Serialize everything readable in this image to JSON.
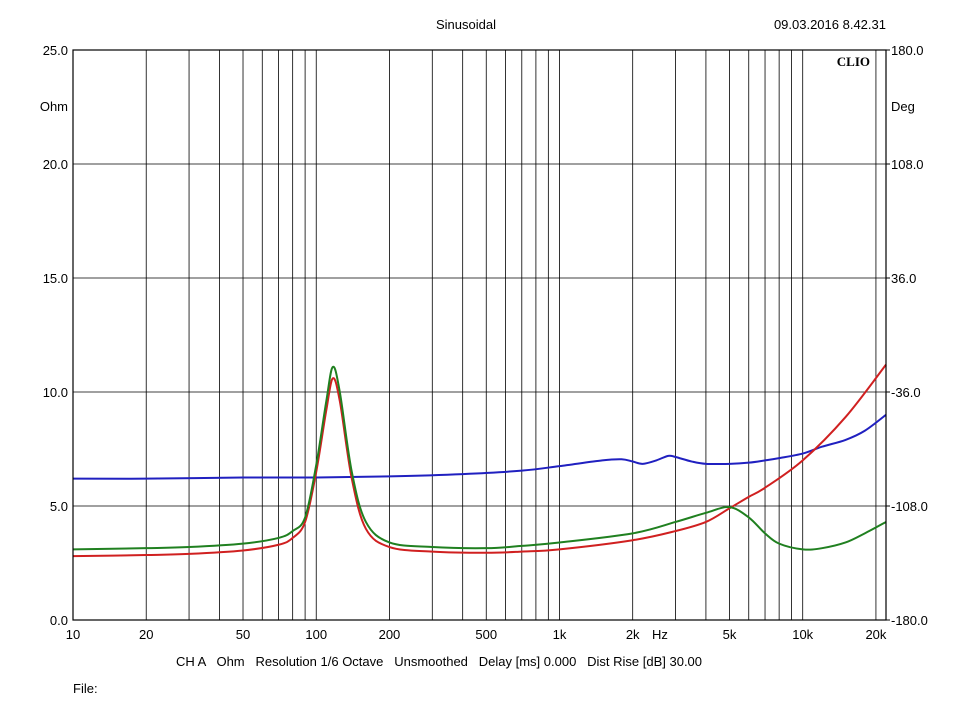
{
  "header": {
    "title": "Sinusoidal",
    "timestamp": "09.03.2016 8.42.31",
    "brand": "CLIO"
  },
  "footer": {
    "info": "CH A   Ohm   Resolution 1/6 Octave   Unsmoothed   Delay [ms] 0.000   Dist Rise [dB] 30.00",
    "file_label": "File:"
  },
  "chart_data": {
    "type": "line",
    "title": "Sinusoidal",
    "xlabel": "Hz",
    "x_scale": "log",
    "xlim": [
      10,
      22000
    ],
    "x_ticks": [
      {
        "value": 10,
        "label": "10"
      },
      {
        "value": 20,
        "label": "20"
      },
      {
        "value": 50,
        "label": "50"
      },
      {
        "value": 100,
        "label": "100"
      },
      {
        "value": 200,
        "label": "200"
      },
      {
        "value": 500,
        "label": "500"
      },
      {
        "value": 1000,
        "label": "1k"
      },
      {
        "value": 2000,
        "label": "2k"
      },
      {
        "value": 5000,
        "label": "5k"
      },
      {
        "value": 10000,
        "label": "10k"
      },
      {
        "value": 20000,
        "label": "20k"
      }
    ],
    "x_grid": [
      10,
      20,
      30,
      40,
      50,
      60,
      70,
      80,
      90,
      100,
      200,
      300,
      400,
      500,
      600,
      700,
      800,
      900,
      1000,
      2000,
      3000,
      4000,
      5000,
      6000,
      7000,
      8000,
      9000,
      10000,
      20000
    ],
    "y_left": {
      "unit": "Ohm",
      "range": [
        0,
        25
      ],
      "ticks": [
        {
          "value": 0,
          "label": "0.0"
        },
        {
          "value": 5,
          "label": "5.0"
        },
        {
          "value": 10,
          "label": "10.0"
        },
        {
          "value": 15,
          "label": "15.0"
        },
        {
          "value": 20,
          "label": "20.0"
        },
        {
          "value": 25,
          "label": "25.0"
        }
      ]
    },
    "y_right": {
      "unit": "Deg",
      "range": [
        -180,
        180
      ],
      "ticks": [
        {
          "value": -180,
          "label": "-180.0"
        },
        {
          "value": -108,
          "label": "-108.0"
        },
        {
          "value": -36,
          "label": "-36.0"
        },
        {
          "value": 36,
          "label": "36.0"
        },
        {
          "value": 108,
          "label": "108.0"
        },
        {
          "value": 180,
          "label": "180.0"
        }
      ]
    },
    "grid": true,
    "series": [
      {
        "color": "#2020c0",
        "axis": "left",
        "x": [
          10,
          20,
          50,
          100,
          200,
          400,
          700,
          1000,
          1500,
          1800,
          2000,
          2200,
          2500,
          2800,
          3000,
          3500,
          4000,
          5000,
          6000,
          7000,
          8000,
          10000,
          12000,
          15000,
          18000,
          22000
        ],
        "y": [
          6.2,
          6.2,
          6.25,
          6.25,
          6.3,
          6.4,
          6.55,
          6.75,
          7.0,
          7.05,
          6.95,
          6.85,
          7.0,
          7.2,
          7.15,
          6.95,
          6.85,
          6.85,
          6.9,
          7.0,
          7.1,
          7.3,
          7.6,
          7.9,
          8.3,
          9.0
        ]
      },
      {
        "color": "#d02020",
        "axis": "left",
        "x": [
          10,
          20,
          30,
          50,
          70,
          80,
          90,
          100,
          110,
          117,
          125,
          140,
          160,
          200,
          300,
          500,
          700,
          1000,
          2000,
          3000,
          4000,
          5000,
          6000,
          7000,
          10000,
          15000,
          22000
        ],
        "y": [
          2.8,
          2.85,
          2.9,
          3.05,
          3.3,
          3.6,
          4.3,
          6.5,
          9.2,
          10.6,
          9.6,
          6.2,
          4.0,
          3.2,
          3.0,
          2.95,
          3.0,
          3.1,
          3.5,
          3.9,
          4.3,
          4.9,
          5.4,
          5.8,
          7.0,
          8.9,
          11.2
        ]
      },
      {
        "color": "#208020",
        "axis": "left",
        "x": [
          10,
          20,
          30,
          50,
          70,
          80,
          90,
          100,
          110,
          117,
          125,
          140,
          160,
          200,
          300,
          500,
          700,
          1000,
          2000,
          3000,
          4000,
          5000,
          6000,
          7000,
          8000,
          10000,
          12000,
          15000,
          18000,
          22000
        ],
        "y": [
          3.1,
          3.15,
          3.2,
          3.35,
          3.6,
          3.9,
          4.5,
          6.8,
          9.6,
          11.1,
          10.0,
          6.5,
          4.3,
          3.4,
          3.2,
          3.15,
          3.25,
          3.4,
          3.8,
          4.3,
          4.7,
          4.95,
          4.5,
          3.8,
          3.35,
          3.1,
          3.15,
          3.4,
          3.8,
          4.3
        ]
      }
    ]
  }
}
